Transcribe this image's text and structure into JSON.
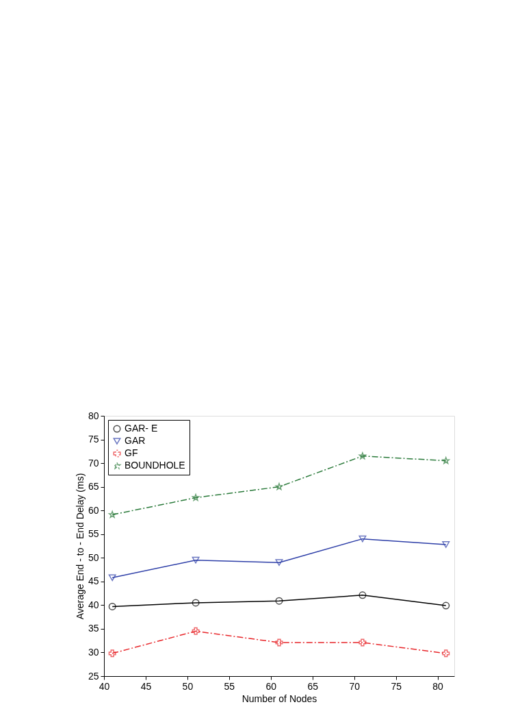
{
  "chart_data": {
    "type": "line",
    "xlabel": "Number of Nodes",
    "ylabel": "Average End - to - End Delay (ms)",
    "x": [
      41,
      51,
      61,
      71,
      81
    ],
    "series": [
      {
        "name": "GAR- E",
        "color": "#000000",
        "marker": "circle",
        "line_style": "solid",
        "values": [
          39.7,
          40.5,
          40.9,
          42.1,
          39.9
        ]
      },
      {
        "name": "GAR",
        "color": "#2e3fa8",
        "marker": "triangle",
        "line_style": "solid",
        "values": [
          45.8,
          49.5,
          49.0,
          54.0,
          52.8
        ]
      },
      {
        "name": "GF",
        "color": "#e8262a",
        "marker": "cross",
        "line_style": "dashed",
        "values": [
          29.8,
          34.5,
          32.1,
          32.1,
          29.8
        ]
      },
      {
        "name": "BOUNDHOLE",
        "color": "#2a7a3a",
        "marker": "star",
        "line_style": "dashed",
        "values": [
          59.1,
          62.7,
          65.0,
          71.5,
          70.5
        ]
      }
    ],
    "xlim": [
      40,
      82
    ],
    "xticks": [
      40,
      45,
      50,
      55,
      60,
      65,
      70,
      75,
      80
    ],
    "ylim": [
      25,
      80
    ],
    "yticks": [
      25,
      30,
      35,
      40,
      45,
      50,
      55,
      60,
      65,
      70,
      75,
      80
    ],
    "grid": false,
    "legend": "top left"
  }
}
